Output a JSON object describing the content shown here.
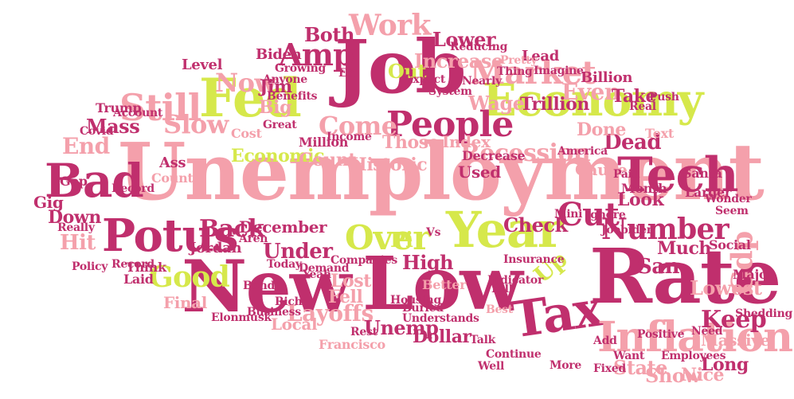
{
  "palette": {
    "pink": "#f4a0ab",
    "crimson": "#c02f6d",
    "lime": "#d6e84b"
  },
  "words": [
    {
      "text": "Unemployment",
      "color": "pink"
    },
    {
      "text": "New",
      "color": "crimson"
    },
    {
      "text": "Low",
      "color": "crimson"
    },
    {
      "text": "Rate",
      "color": "crimson"
    },
    {
      "text": "Job",
      "color": "crimson"
    },
    {
      "text": "Fed",
      "color": "lime"
    },
    {
      "text": "Year",
      "color": "lime"
    },
    {
      "text": "Economy",
      "color": "lime"
    },
    {
      "text": "Tax",
      "color": "crimson"
    },
    {
      "text": "Tech",
      "color": "crimson"
    },
    {
      "text": "Inflation",
      "color": "pink"
    },
    {
      "text": "Bad",
      "color": "crimson"
    },
    {
      "text": "Potus",
      "color": "crimson"
    },
    {
      "text": "Still",
      "color": "pink"
    },
    {
      "text": "People",
      "color": "crimson"
    },
    {
      "text": "Market",
      "color": "pink"
    },
    {
      "text": "Work",
      "color": "pink"
    },
    {
      "text": "Amp",
      "color": "crimson"
    },
    {
      "text": "Number",
      "color": "crimson"
    },
    {
      "text": "Over",
      "color": "lime"
    },
    {
      "text": "Cut",
      "color": "crimson"
    },
    {
      "text": "Gdp",
      "color": "pink"
    },
    {
      "text": "Good",
      "color": "lime"
    },
    {
      "text": "Recession",
      "color": "pink"
    },
    {
      "text": "Layoffs",
      "color": "pink"
    },
    {
      "text": "Keep",
      "color": "crimson"
    },
    {
      "text": "Now",
      "color": "pink"
    },
    {
      "text": "Slow",
      "color": "pink"
    },
    {
      "text": "End",
      "color": "pink"
    },
    {
      "text": "Hit",
      "color": "pink"
    },
    {
      "text": "Come",
      "color": "pink"
    },
    {
      "text": "Dead",
      "color": "crimson"
    },
    {
      "text": "Up",
      "color": "lime"
    },
    {
      "text": "Even",
      "color": "pink"
    },
    {
      "text": "Increase",
      "color": "pink"
    },
    {
      "text": "Lower",
      "color": "crimson"
    },
    {
      "text": "Both",
      "color": "crimson"
    },
    {
      "text": "Out",
      "color": "lime"
    },
    {
      "text": "Wage",
      "color": "pink"
    },
    {
      "text": "Trillion",
      "color": "crimson"
    },
    {
      "text": "Take",
      "color": "crimson"
    },
    {
      "text": "State",
      "color": "pink"
    },
    {
      "text": "Lowest",
      "color": "pink"
    },
    {
      "text": "San",
      "color": "crimson"
    },
    {
      "text": "Show",
      "color": "pink"
    },
    {
      "text": "Long",
      "color": "crimson"
    },
    {
      "text": "Unemp",
      "color": "crimson"
    },
    {
      "text": "Dollar",
      "color": "crimson"
    },
    {
      "text": "Francisco",
      "color": "pink"
    },
    {
      "text": "Under",
      "color": "crimson"
    },
    {
      "text": "Back",
      "color": "crimson"
    },
    {
      "text": "Jordan",
      "color": "crimson"
    },
    {
      "text": "December",
      "color": "crimson"
    },
    {
      "text": "Economic",
      "color": "lime"
    },
    {
      "text": "Count",
      "color": "pink"
    },
    {
      "text": "High",
      "color": "crimson"
    },
    {
      "text": "Lost",
      "color": "pink"
    },
    {
      "text": "Fell",
      "color": "pink"
    },
    {
      "text": "Local",
      "color": "pink"
    },
    {
      "text": "Final",
      "color": "pink"
    },
    {
      "text": "Down",
      "color": "crimson"
    },
    {
      "text": "Mass",
      "color": "crimson"
    },
    {
      "text": "Jim",
      "color": "crimson"
    },
    {
      "text": "Historic",
      "color": "pink"
    },
    {
      "text": "Check",
      "color": "crimson"
    },
    {
      "text": "Much",
      "color": "crimson"
    },
    {
      "text": "Look",
      "color": "crimson"
    },
    {
      "text": "Massive",
      "color": "pink"
    },
    {
      "text": "Nice",
      "color": "pink"
    },
    {
      "text": "Used",
      "color": "crimson"
    },
    {
      "text": "Decrease",
      "color": "crimson"
    },
    {
      "text": "Those",
      "color": "pink"
    },
    {
      "text": "Index",
      "color": "pink"
    },
    {
      "text": "Done",
      "color": "pink"
    },
    {
      "text": "Cause",
      "color": "pink"
    },
    {
      "text": "Billion",
      "color": "crimson"
    },
    {
      "text": "Lead",
      "color": "crimson"
    },
    {
      "text": "Biden",
      "color": "crimson"
    },
    {
      "text": "Level",
      "color": "crimson"
    },
    {
      "text": "County",
      "color": "pink"
    },
    {
      "text": "Gig",
      "color": "crimson"
    },
    {
      "text": "Ass",
      "color": "crimson"
    },
    {
      "text": "Big",
      "color": "pink"
    },
    {
      "text": "Cost",
      "color": "pink"
    },
    {
      "text": "Million",
      "color": "crimson"
    },
    {
      "text": "Income",
      "color": "crimson"
    },
    {
      "text": "Mini",
      "color": "crimson"
    },
    {
      "text": "Pi",
      "color": "lime"
    },
    {
      "text": "Trump",
      "color": "crimson"
    },
    {
      "text": "Gop",
      "color": "crimson"
    },
    {
      "text": "Major",
      "color": "crimson"
    },
    {
      "text": "Social",
      "color": "crimson"
    },
    {
      "text": "Larger",
      "color": "crimson"
    },
    {
      "text": "Santa",
      "color": "crimson"
    },
    {
      "text": "Month",
      "color": "crimson"
    },
    {
      "text": "Insurance",
      "color": "crimson"
    },
    {
      "text": "Indicator",
      "color": "crimson"
    },
    {
      "text": "Record",
      "color": "crimson"
    },
    {
      "text": "Policy",
      "color": "crimson"
    },
    {
      "text": "Think",
      "color": "crimson"
    },
    {
      "text": "Laid",
      "color": "crimson"
    },
    {
      "text": "Better",
      "color": "pink"
    },
    {
      "text": "Companies",
      "color": "crimson"
    },
    {
      "text": "Bill",
      "color": "crimson"
    },
    {
      "text": "Want",
      "color": "crimson"
    },
    {
      "text": "Positive",
      "color": "crimson"
    },
    {
      "text": "Need",
      "color": "crimson"
    },
    {
      "text": "Add",
      "color": "crimson"
    },
    {
      "text": "Talk",
      "color": "crimson"
    },
    {
      "text": "Best",
      "color": "pink"
    },
    {
      "text": "More",
      "color": "crimson"
    },
    {
      "text": "Continue",
      "color": "crimson"
    },
    {
      "text": "Well",
      "color": "crimson"
    },
    {
      "text": "Rest",
      "color": "crimson"
    },
    {
      "text": "Business",
      "color": "crimson"
    },
    {
      "text": "Elonmusk",
      "color": "crimson"
    },
    {
      "text": "Pretty",
      "color": "pink"
    },
    {
      "text": "Imagine",
      "color": "crimson"
    },
    {
      "text": "America",
      "color": "crimson"
    },
    {
      "text": "Push",
      "color": "crimson"
    },
    {
      "text": "Text",
      "color": "pink"
    },
    {
      "text": "Covid",
      "color": "crimson"
    },
    {
      "text": "Benefits",
      "color": "crimson"
    },
    {
      "text": "Growing",
      "color": "crimson"
    },
    {
      "text": "Employees",
      "color": "crimson"
    },
    {
      "text": "Shedding",
      "color": "crimson"
    },
    {
      "text": "Wonder",
      "color": "crimson"
    },
    {
      "text": "Seem",
      "color": "crimson"
    },
    {
      "text": "Today",
      "color": "crimson"
    },
    {
      "text": "Yeah",
      "color": "crimson"
    },
    {
      "text": "Housing",
      "color": "crimson"
    },
    {
      "text": "Buried",
      "color": "crimson"
    },
    {
      "text": "Understands",
      "color": "crimson"
    },
    {
      "text": "Ignore",
      "color": "crimson"
    },
    {
      "text": "Joebiden",
      "color": "crimson"
    },
    {
      "text": "Aren",
      "color": "crimson"
    },
    {
      "text": "Rich",
      "color": "crimson"
    },
    {
      "text": "Paid",
      "color": "crimson"
    },
    {
      "text": "Eh",
      "color": "crimson"
    },
    {
      "text": "Vs",
      "color": "crimson"
    },
    {
      "text": "Thing",
      "color": "crimson"
    },
    {
      "text": "Nearly",
      "color": "crimson"
    },
    {
      "text": "Reducing",
      "color": "crimson"
    },
    {
      "text": "Anyone",
      "color": "crimson"
    },
    {
      "text": "Account",
      "color": "crimson"
    },
    {
      "text": "Record",
      "color": "crimson"
    },
    {
      "text": "Demand",
      "color": "crimson"
    },
    {
      "text": "Bond",
      "color": "crimson"
    },
    {
      "text": "Really",
      "color": "crimson"
    },
    {
      "text": "Great",
      "color": "crimson"
    },
    {
      "text": "System",
      "color": "crimson"
    },
    {
      "text": "Real",
      "color": "crimson"
    },
    {
      "text": "Expect",
      "color": "crimson"
    },
    {
      "text": "Fixed",
      "color": "crimson"
    }
  ]
}
